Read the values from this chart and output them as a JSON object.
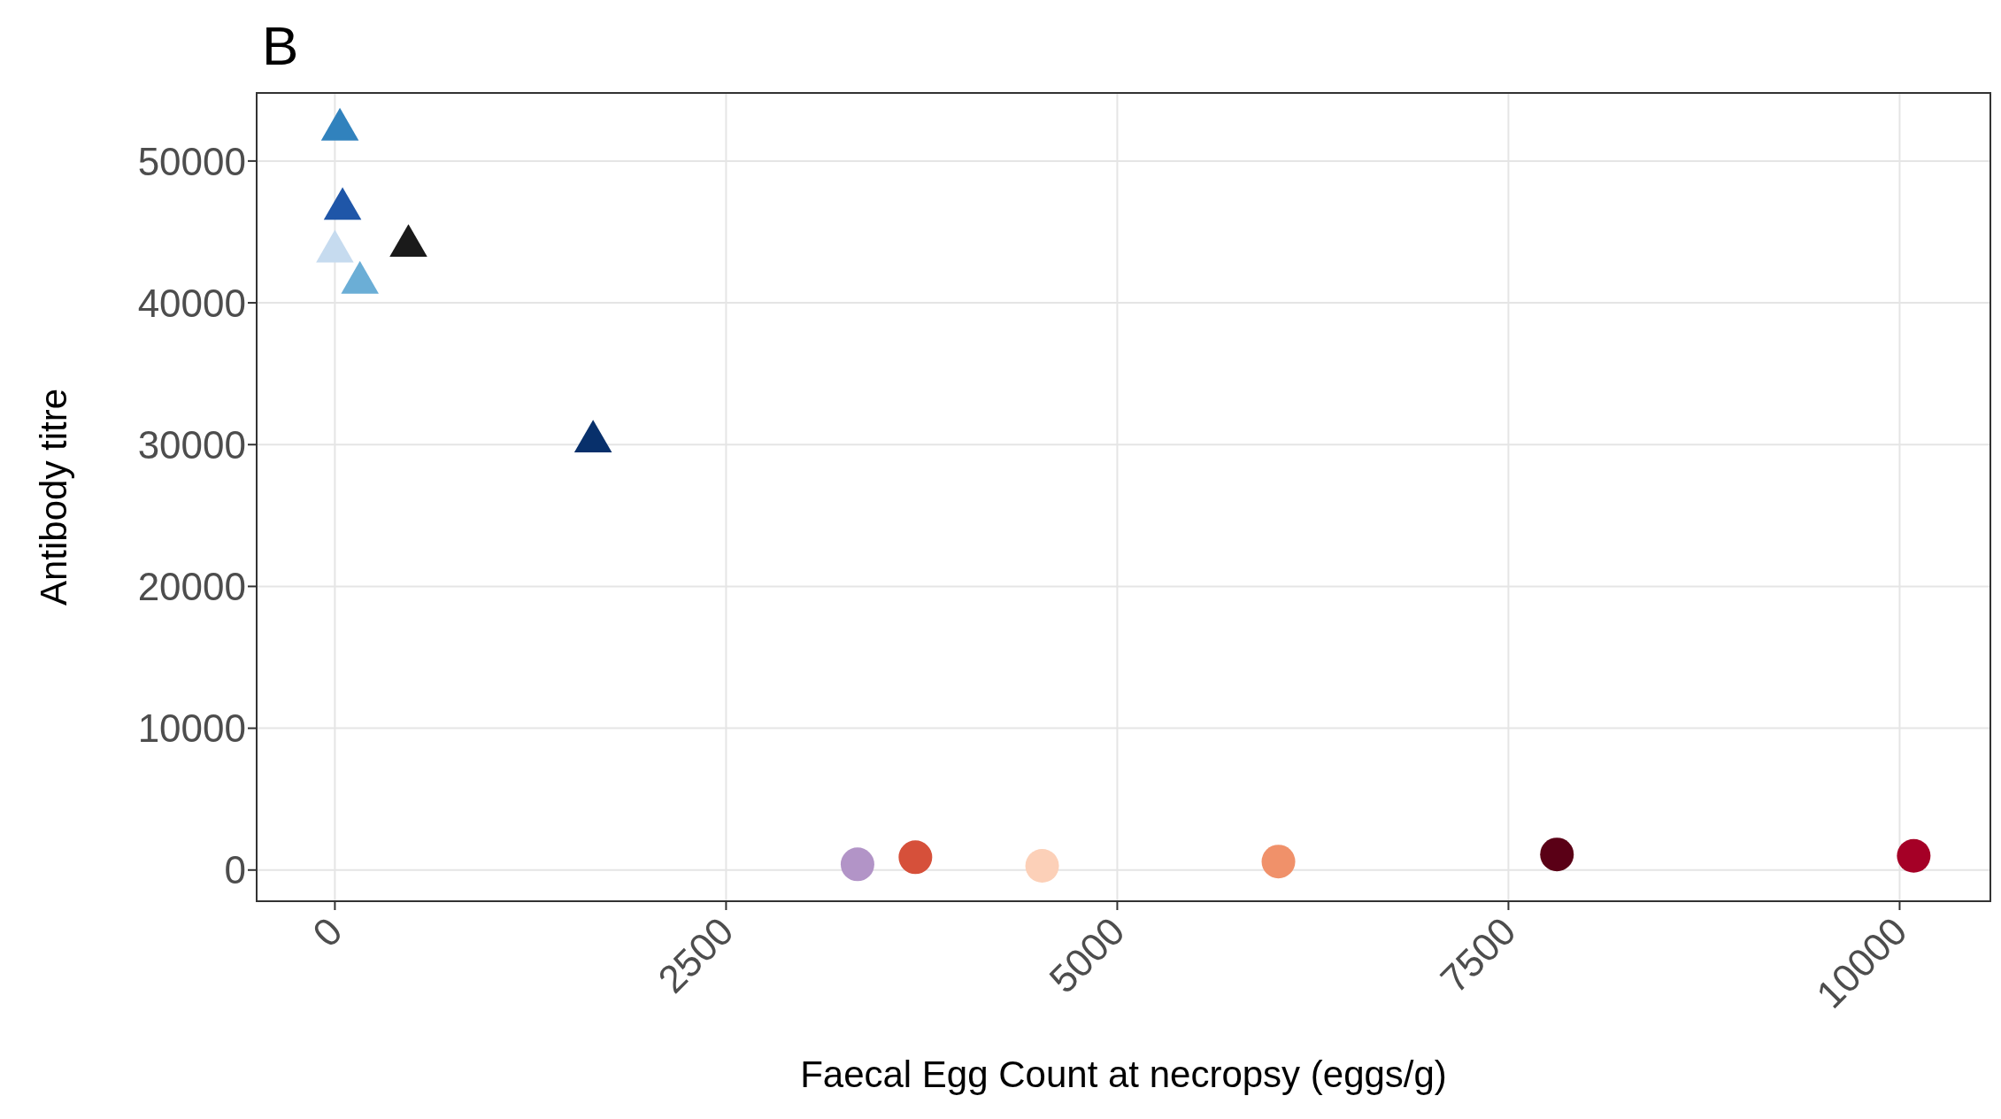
{
  "chart_data": {
    "type": "scatter",
    "title": "B",
    "xlabel": "Faecal Egg Count at necropsy (eggs/g)",
    "ylabel": "Antibody titre",
    "series": [
      {
        "marker": "triangle",
        "x": [
          32,
          49,
          0,
          160,
          470,
          1650
        ],
        "values": [
          52600,
          47000,
          44000,
          41800,
          44400,
          30600
        ],
        "colors": [
          "#3182bd",
          "#1f56a8",
          "#c6dbef",
          "#6baed6",
          "#1a1a1a",
          "#08306b"
        ]
      },
      {
        "marker": "circle",
        "x": [
          3340,
          3710,
          4520,
          6030,
          7810,
          10090
        ],
        "values": [
          400,
          900,
          300,
          600,
          1100,
          1000
        ],
        "colors": [
          "#b294c7",
          "#d6503a",
          "#fcd0b8",
          "#f0916a",
          "#5a0016",
          "#a50026"
        ]
      }
    ],
    "xlim": [
      -500,
      10580
    ],
    "xticks": [
      0,
      2500,
      5000,
      7500,
      10000
    ],
    "ylim": [
      -2200,
      54800
    ],
    "yticks": [
      0,
      10000,
      20000,
      30000,
      40000,
      50000
    ],
    "grid": true
  }
}
